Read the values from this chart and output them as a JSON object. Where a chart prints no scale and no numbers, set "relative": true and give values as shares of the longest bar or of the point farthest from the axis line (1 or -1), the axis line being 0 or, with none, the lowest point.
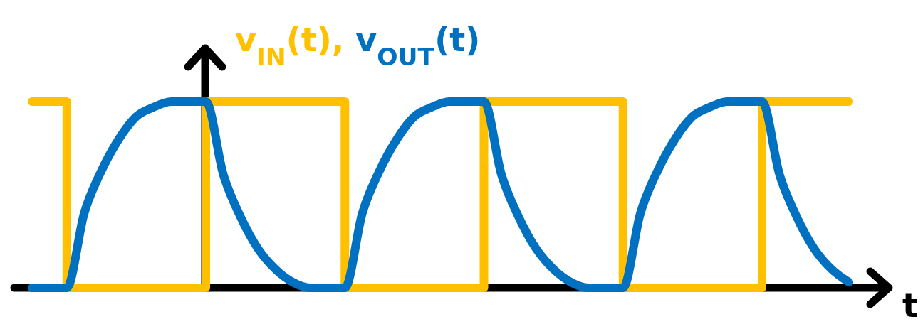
{
  "chart_data": {
    "type": "line",
    "relative": true,
    "xlabel": "t",
    "annotations": [
      ","
    ],
    "legend": "top",
    "marker": "none",
    "line_style": "solid",
    "categories": [
      null,
      null,
      null,
      null,
      null,
      null,
      null,
      null,
      null,
      null,
      null,
      null,
      null,
      null,
      null,
      null,
      null,
      null,
      null,
      null,
      null,
      null,
      null,
      null,
      null,
      null,
      null,
      null,
      null,
      null,
      null,
      null,
      null,
      null,
      null,
      null,
      null,
      null,
      null,
      null,
      null,
      null,
      null,
      null,
      null,
      null,
      null,
      null
    ],
    "series": [
      {
        "name": "v$_{IN}$(t)",
        "type": "step",
        "color": "#ffc000",
        "values": [
          1,
          1,
          0,
          0,
          0,
          0,
          0,
          0,
          0,
          0,
          1,
          1,
          1,
          1,
          1,
          1,
          1,
          1,
          0,
          0,
          0,
          0,
          0,
          0,
          0,
          0,
          1,
          1,
          1,
          1,
          1,
          1,
          1,
          1,
          0,
          0,
          0,
          0,
          0,
          0,
          0,
          0,
          1,
          1,
          1,
          1,
          1,
          1
        ]
      },
      {
        "name": "v$_{OUT}$(t)",
        "type": "line",
        "color": "#0070c0",
        "values": [
          0,
          0,
          0,
          0.4,
          0.63,
          0.8,
          0.92,
          0.97,
          1,
          1,
          1,
          0.61,
          0.38,
          0.21,
          0.1,
          0.03,
          0,
          0,
          0,
          0.4,
          0.63,
          0.8,
          0.92,
          0.97,
          1,
          1,
          1,
          0.61,
          0.38,
          0.21,
          0.1,
          0.03,
          0,
          0,
          0,
          0.4,
          0.63,
          0.8,
          0.92,
          0.97,
          1,
          1,
          1,
          0.61,
          0.38,
          0.21,
          0.1,
          0.03
        ]
      }
    ]
  }
}
